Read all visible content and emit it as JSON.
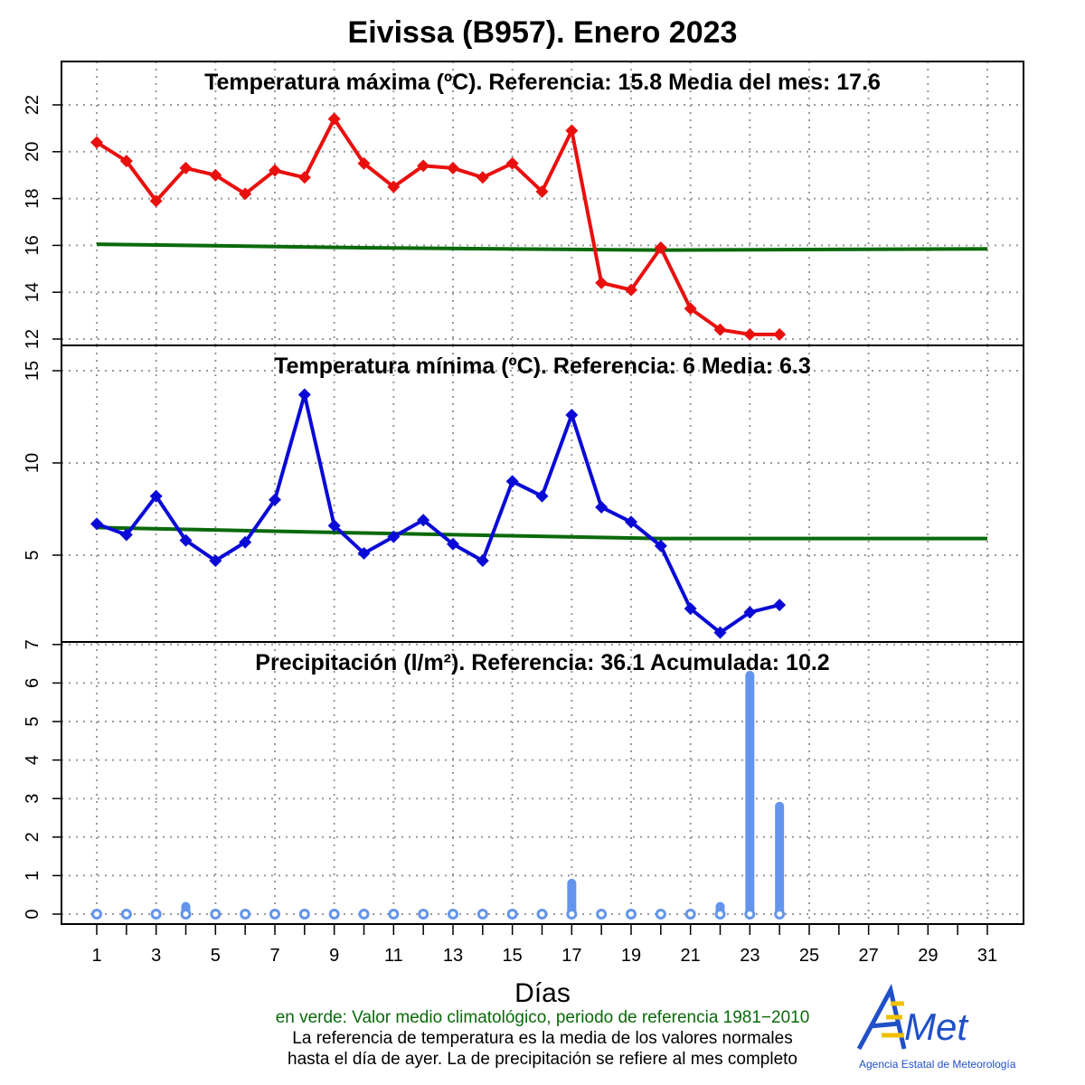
{
  "title": "Eivissa (B957). Enero 2023",
  "xlabel": "Días",
  "footnote": {
    "line1": "en verde: Valor medio climatológico, periodo de referencia 1981−2010",
    "line2": "La referencia de temperatura es la media de los valores normales",
    "line3": "hasta el día de ayer. La de precipitación se refiere al mes completo"
  },
  "logo": {
    "text": "AEMet",
    "subtitle": "Agencia Estatal de Meteorología"
  },
  "colors": {
    "tmax": "#e8100e",
    "tmin": "#0a0ad6",
    "precip": "#6495ed",
    "reference": "#0a6a0a"
  },
  "chart_data": [
    {
      "type": "line",
      "title": "Temperatura máxima (ºC). Referencia:  15.8   Media del mes:  17.6",
      "x": [
        1,
        2,
        3,
        4,
        5,
        6,
        7,
        8,
        9,
        10,
        11,
        12,
        13,
        14,
        15,
        16,
        17,
        18,
        19,
        20,
        21,
        22,
        23,
        24
      ],
      "values": [
        20.4,
        19.6,
        17.9,
        19.3,
        19.0,
        18.2,
        19.2,
        18.9,
        21.4,
        19.5,
        18.5,
        19.4,
        19.3,
        18.9,
        19.5,
        18.3,
        20.9,
        14.4,
        14.1,
        15.9,
        13.3,
        12.4,
        12.2,
        12.2
      ],
      "reference": {
        "x": [
          1,
          10,
          20,
          31
        ],
        "values": [
          16.05,
          15.9,
          15.8,
          15.85
        ]
      },
      "ylim": [
        12,
        23.5
      ],
      "yticks": [
        12,
        14,
        16,
        18,
        20,
        22
      ],
      "grid": true
    },
    {
      "type": "line",
      "title": "Temperatura mínima (ºC). Referencia:  6   Media:  6.3",
      "x": [
        1,
        2,
        3,
        4,
        5,
        6,
        7,
        8,
        9,
        10,
        11,
        12,
        13,
        14,
        15,
        16,
        17,
        18,
        19,
        20,
        21,
        22,
        23,
        24
      ],
      "values": [
        6.7,
        6.1,
        8.2,
        5.8,
        4.7,
        5.7,
        8.0,
        13.7,
        6.6,
        5.1,
        6.0,
        6.9,
        5.6,
        4.7,
        9.0,
        8.2,
        12.6,
        7.6,
        6.8,
        5.5,
        2.1,
        0.8,
        1.9,
        2.3
      ],
      "reference": {
        "x": [
          1,
          10,
          20,
          31
        ],
        "values": [
          6.5,
          6.2,
          5.9,
          5.9
        ]
      },
      "ylim": [
        0.3,
        16.4
      ],
      "yticks": [
        5,
        10,
        15
      ],
      "grid": true
    },
    {
      "type": "bar",
      "title": "Precipitación (l/m²). Referencia:  36.1   Acumulada:  10.2",
      "x": [
        1,
        2,
        3,
        4,
        5,
        6,
        7,
        8,
        9,
        10,
        11,
        12,
        13,
        14,
        15,
        16,
        17,
        18,
        19,
        20,
        21,
        22,
        23,
        24
      ],
      "values": [
        0,
        0,
        0,
        0.2,
        0,
        0,
        0,
        0,
        0,
        0,
        0,
        0,
        0,
        0,
        0,
        0,
        0.8,
        0,
        0,
        0,
        0,
        0.2,
        6.2,
        2.8
      ],
      "ylim": [
        0,
        7
      ],
      "yticks": [
        0,
        1,
        2,
        3,
        4,
        5,
        6,
        7
      ],
      "grid": true
    }
  ],
  "xticks": [
    1,
    3,
    5,
    7,
    9,
    11,
    13,
    15,
    17,
    19,
    21,
    23,
    25,
    27,
    29,
    31
  ],
  "xlim": [
    1,
    31
  ]
}
